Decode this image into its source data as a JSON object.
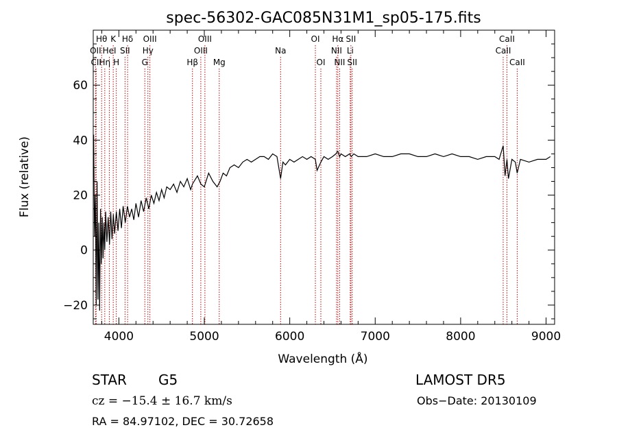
{
  "chart_data": {
    "type": "line",
    "title": "spec-56302-GAC085N31M1_sp05-175.fits",
    "xlabel": "Wavelength (Å)",
    "ylabel": "Flux (relative)",
    "xlim": [
      3700,
      9100
    ],
    "ylim": [
      -27,
      80
    ],
    "xticks": [
      4000,
      5000,
      6000,
      7000,
      8000,
      9000
    ],
    "yticks": [
      -20,
      0,
      20,
      40,
      60
    ],
    "grid": false,
    "line_color": "#000000",
    "marker_color": "#c00000",
    "series": [
      {
        "x": [
          3705,
          3715,
          3725,
          3735,
          3745,
          3755,
          3765,
          3775,
          3785,
          3795,
          3805,
          3815,
          3825,
          3835,
          3845,
          3860,
          3875,
          3890,
          3905,
          3920,
          3935,
          3950,
          3970,
          3990,
          4010,
          4030,
          4050,
          4075,
          4100,
          4125,
          4150,
          4175,
          4200,
          4230,
          4260,
          4290,
          4320,
          4350,
          4380,
          4410,
          4440,
          4470,
          4500,
          4530,
          4560,
          4600,
          4640,
          4680,
          4720,
          4760,
          4800,
          4840,
          4861,
          4880,
          4920,
          4960,
          5000,
          5050,
          5100,
          5150,
          5184,
          5220,
          5260,
          5300,
          5350,
          5400,
          5450,
          5500,
          5550,
          5600,
          5650,
          5700,
          5750,
          5800,
          5850,
          5893,
          5920,
          5950,
          6000,
          6050,
          6100,
          6150,
          6200,
          6250,
          6300,
          6320,
          6364,
          6400,
          6450,
          6500,
          6540,
          6563,
          6584,
          6600,
          6650,
          6700,
          6720,
          6750,
          6800,
          6900,
          7000,
          7100,
          7200,
          7300,
          7400,
          7500,
          7600,
          7700,
          7800,
          7900,
          8000,
          8100,
          8200,
          8300,
          8400,
          8450,
          8498,
          8520,
          8542,
          8560,
          8600,
          8640,
          8662,
          8700,
          8800,
          8900,
          9000,
          9050
        ],
        "y": [
          42,
          5,
          20,
          -20,
          25,
          -18,
          10,
          -22,
          15,
          -5,
          12,
          -3,
          10,
          0,
          14,
          3,
          12,
          2,
          14,
          4,
          13,
          6,
          14,
          7,
          15,
          8,
          16,
          10,
          16,
          12,
          15,
          11,
          17,
          12,
          18,
          14,
          19,
          15,
          20,
          17,
          21,
          18,
          22,
          19,
          23,
          22,
          24,
          21,
          25,
          23,
          26,
          22,
          24,
          25,
          27,
          24,
          23,
          28,
          25,
          23,
          25,
          28,
          27,
          30,
          31,
          30,
          32,
          33,
          32,
          33,
          34,
          34,
          33,
          35,
          34,
          26,
          32,
          31,
          33,
          32,
          33,
          34,
          33,
          34,
          33,
          29,
          32,
          34,
          33,
          34,
          35,
          36,
          34,
          35,
          34,
          35,
          34,
          35,
          34,
          34,
          35,
          34,
          34,
          35,
          35,
          34,
          34,
          35,
          34,
          35,
          34,
          34,
          33,
          34,
          34,
          33,
          38,
          27,
          33,
          26,
          33,
          32,
          28,
          33,
          32,
          33,
          33,
          34
        ]
      }
    ],
    "line_markers": [
      {
        "x": 3727,
        "label": "OII",
        "row": 2
      },
      {
        "x": 3734,
        "label": "CII",
        "row": 3
      },
      {
        "x": 3798,
        "label": "Hθ",
        "row": 1
      },
      {
        "x": 3835,
        "label": "Hη",
        "row": 3
      },
      {
        "x": 3889,
        "label": "HeI",
        "row": 2
      },
      {
        "x": 3934,
        "label": "K",
        "row": 1
      },
      {
        "x": 3970,
        "label": "H",
        "row": 3
      },
      {
        "x": 4072,
        "label": "SII",
        "row": 2
      },
      {
        "x": 4102,
        "label": "Hδ",
        "row": 1
      },
      {
        "x": 4304,
        "label": "G",
        "row": 3
      },
      {
        "x": 4340,
        "label": "Hγ",
        "row": 2
      },
      {
        "x": 4363,
        "label": "OIII",
        "row": 1
      },
      {
        "x": 4861,
        "label": "Hβ",
        "row": 3
      },
      {
        "x": 4959,
        "label": "OIII",
        "row": 2
      },
      {
        "x": 5007,
        "label": "OIII",
        "row": 1
      },
      {
        "x": 5175,
        "label": "Mg",
        "row": 3
      },
      {
        "x": 5893,
        "label": "Na",
        "row": 2
      },
      {
        "x": 6300,
        "label": "OI",
        "row": 1
      },
      {
        "x": 6364,
        "label": "OI",
        "row": 3
      },
      {
        "x": 6548,
        "label": "NII",
        "row": 2
      },
      {
        "x": 6563,
        "label": "Hα",
        "row": 1
      },
      {
        "x": 6584,
        "label": "NII",
        "row": 3
      },
      {
        "x": 6708,
        "label": "Li",
        "row": 2
      },
      {
        "x": 6716,
        "label": "SII",
        "row": 1
      },
      {
        "x": 6731,
        "label": "SII",
        "row": 3
      },
      {
        "x": 8498,
        "label": "CaII",
        "row": 2
      },
      {
        "x": 8542,
        "label": "CaII",
        "row": 1
      },
      {
        "x": 8662,
        "label": "CaII",
        "row": 3
      }
    ]
  },
  "info": {
    "object_class": "STAR",
    "subclass": "G5",
    "survey": "LAMOST DR5",
    "cz_label": "cz = −15.4 ± 16.7 km/s",
    "obs_date": "Obs−Date: 20130109",
    "coords": "RA =  84.97102, DEC =  30.72658"
  }
}
